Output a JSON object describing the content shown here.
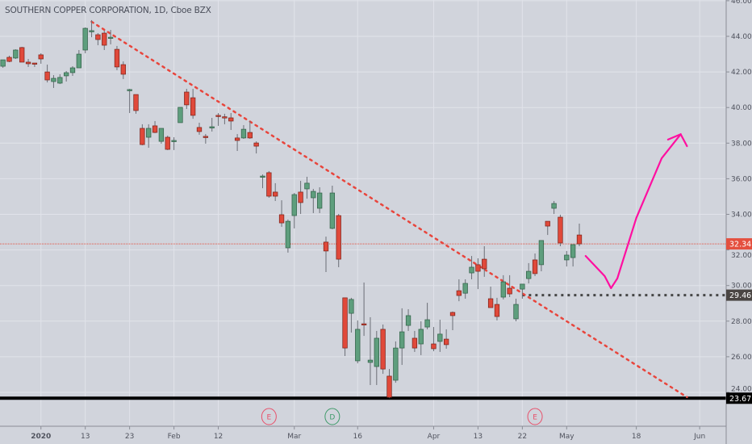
{
  "header": {
    "title": "SOUTHERN COPPER CORPORATION, 1D, Cboe BZX"
  },
  "colors": {
    "background": "#d1d4dc",
    "grid": "#e1e3ea",
    "up": "#5e9e7d",
    "down": "#e0493a",
    "trendline": "#e8453c",
    "drawing": "#ff0fa0",
    "last_price": "#e4503f",
    "level": "#454545",
    "support": "#000000"
  },
  "price_axis": {
    "labels": [
      "46.00",
      "44.00",
      "42.00",
      "40.00",
      "38.00",
      "36.00",
      "34.00",
      "32.00",
      "30.00",
      "28.00",
      "26.00",
      "24.00"
    ]
  },
  "time_axis": {
    "labels": [
      {
        "text": "2020",
        "date": "2020-01-02"
      },
      {
        "text": "13",
        "date": "2020-01-13"
      },
      {
        "text": "23",
        "date": "2020-01-23"
      },
      {
        "text": "Feb",
        "date": "2020-02-03"
      },
      {
        "text": "12",
        "date": "2020-02-12"
      },
      {
        "text": "Mar",
        "date": "2020-03-02"
      },
      {
        "text": "16",
        "date": "2020-03-16"
      },
      {
        "text": "Apr",
        "date": "2020-04-01"
      },
      {
        "text": "13",
        "date": "2020-04-13"
      },
      {
        "text": "22",
        "date": "2020-04-22"
      },
      {
        "text": "May",
        "date": "2020-05-01"
      },
      {
        "text": "18",
        "date": "2020-05-18"
      },
      {
        "text": "Jun",
        "date": "2020-06-01"
      }
    ]
  },
  "price_tags": [
    {
      "text": "32.34",
      "value": 32.34,
      "kind": "last_price"
    },
    {
      "text": "29.46",
      "value": 29.46,
      "kind": "level"
    },
    {
      "text": "23.67",
      "value": 23.67,
      "kind": "support"
    }
  ],
  "events": [
    {
      "text": "E",
      "date": "2020-02-25",
      "kind": "earnings"
    },
    {
      "text": "D",
      "date": "2020-03-10",
      "kind": "dividend"
    },
    {
      "text": "E",
      "date": "2020-04-24",
      "kind": "earnings"
    }
  ],
  "drawings": {
    "trendline": {
      "style": "dotted",
      "points": [
        [
          "2020-01-14",
          44.82
        ],
        [
          "2020-05-28",
          23.73
        ]
      ]
    },
    "level_line": {
      "style": "dotted",
      "value": 29.46,
      "from": "2020-04-22"
    },
    "support_line": {
      "style": "solid",
      "value": 23.67
    },
    "arrow_path": [
      [
        "2020-05-06",
        31.66
      ],
      [
        "2020-05-11",
        30.53
      ],
      [
        "2020-05-12",
        29.85
      ],
      [
        "2020-05-13",
        30.4
      ],
      [
        "2020-05-18",
        33.8
      ],
      [
        "2020-05-22",
        37.15
      ],
      [
        "2020-05-27",
        38.5
      ]
    ],
    "arrow_head": [
      [
        "2020-05-25",
        38.2
      ],
      [
        "2020-05-27",
        38.5
      ],
      [
        "2020-05-28",
        37.83
      ]
    ]
  },
  "chart_data": {
    "type": "candlestick",
    "symbol": "SOUTHERN COPPER CORPORATION",
    "interval": "1D",
    "exchange": "Cboe BZX",
    "ylim": [
      23.0,
      46.2
    ],
    "grid": true,
    "candles": [
      [
        "2019-12-20",
        42.87,
        43.0,
        42.23,
        42.28
      ],
      [
        "2019-12-23",
        42.32,
        42.68,
        42.23,
        42.68
      ],
      [
        "2019-12-24",
        42.82,
        42.91,
        42.55,
        42.59
      ],
      [
        "2019-12-26",
        42.78,
        43.27,
        42.73,
        43.23
      ],
      [
        "2019-12-27",
        43.37,
        43.41,
        42.55,
        42.55
      ],
      [
        "2019-12-30",
        42.55,
        42.73,
        42.28,
        42.46
      ],
      [
        "2019-12-31",
        42.5,
        42.5,
        42.28,
        42.46
      ],
      [
        "2020-01-02",
        42.96,
        43.05,
        42.46,
        42.73
      ],
      [
        "2020-01-03",
        42.0,
        42.41,
        41.41,
        41.55
      ],
      [
        "2020-01-06",
        41.46,
        41.82,
        41.1,
        41.64
      ],
      [
        "2020-01-07",
        41.37,
        41.87,
        41.32,
        41.69
      ],
      [
        "2020-01-08",
        41.78,
        42.05,
        41.46,
        41.96
      ],
      [
        "2020-01-09",
        41.96,
        42.32,
        41.78,
        42.23
      ],
      [
        "2020-01-10",
        42.23,
        43.23,
        42.23,
        43.0
      ],
      [
        "2020-01-13",
        43.23,
        44.5,
        43.05,
        44.45
      ],
      [
        "2020-01-14",
        44.3,
        44.91,
        43.95,
        44.32
      ],
      [
        "2020-01-15",
        44.09,
        44.18,
        43.5,
        43.82
      ],
      [
        "2020-01-16",
        44.18,
        44.32,
        43.23,
        43.5
      ],
      [
        "2020-01-17",
        43.93,
        44.36,
        43.55,
        43.95
      ],
      [
        "2020-01-21",
        43.27,
        43.46,
        42.1,
        42.28
      ],
      [
        "2020-01-22",
        42.41,
        42.59,
        41.6,
        41.87
      ],
      [
        "2020-01-23",
        40.99,
        41.05,
        39.69,
        41.01
      ],
      [
        "2020-01-24",
        40.73,
        40.73,
        39.65,
        39.83
      ],
      [
        "2020-01-27",
        38.83,
        39.06,
        37.88,
        37.92
      ],
      [
        "2020-01-28",
        38.33,
        39.06,
        37.74,
        38.83
      ],
      [
        "2020-01-29",
        38.97,
        39.24,
        38.56,
        38.6
      ],
      [
        "2020-01-30",
        38.1,
        38.83,
        37.97,
        38.83
      ],
      [
        "2020-01-31",
        38.33,
        38.42,
        37.61,
        37.65
      ],
      [
        "2020-02-03",
        38.13,
        38.33,
        37.61,
        38.15
      ],
      [
        "2020-02-04",
        39.15,
        40.01,
        39.15,
        40.01
      ],
      [
        "2020-02-05",
        40.87,
        41.05,
        39.92,
        40.15
      ],
      [
        "2020-02-06",
        40.55,
        41.05,
        39.37,
        39.56
      ],
      [
        "2020-02-07",
        38.88,
        39.15,
        38.47,
        38.65
      ],
      [
        "2020-02-10",
        38.38,
        38.51,
        37.97,
        38.33
      ],
      [
        "2020-02-11",
        38.88,
        39.42,
        38.65,
        38.92
      ],
      [
        "2020-02-12",
        39.56,
        39.69,
        38.97,
        39.51
      ],
      [
        "2020-02-13",
        39.48,
        39.65,
        39.06,
        39.44
      ],
      [
        "2020-02-14",
        39.42,
        39.69,
        38.74,
        39.24
      ],
      [
        "2020-02-18",
        38.29,
        38.51,
        37.56,
        38.15
      ],
      [
        "2020-02-19",
        38.29,
        39.01,
        38.24,
        38.78
      ],
      [
        "2020-02-20",
        38.6,
        39.24,
        38.24,
        38.29
      ],
      [
        "2020-02-21",
        38.01,
        38.1,
        37.42,
        37.83
      ],
      [
        "2020-02-24",
        36.13,
        36.24,
        35.47,
        36.15
      ],
      [
        "2020-02-25",
        36.34,
        36.43,
        34.93,
        35.02
      ],
      [
        "2020-02-26",
        35.25,
        35.75,
        34.75,
        35.02
      ],
      [
        "2020-02-27",
        33.98,
        34.79,
        33.3,
        33.52
      ],
      [
        "2020-02-28",
        32.12,
        33.71,
        31.85,
        33.61
      ],
      [
        "2020-03-02",
        33.93,
        35.2,
        33.21,
        35.11
      ],
      [
        "2020-03-03",
        35.25,
        35.88,
        34.02,
        34.66
      ],
      [
        "2020-03-04",
        35.43,
        36.11,
        34.88,
        35.75
      ],
      [
        "2020-03-05",
        34.93,
        35.43,
        34.07,
        35.29
      ],
      [
        "2020-03-06",
        34.34,
        35.52,
        34.07,
        35.2
      ],
      [
        "2020-03-09",
        32.44,
        32.75,
        30.76,
        31.94
      ],
      [
        "2020-03-10",
        33.21,
        35.61,
        33.16,
        35.2
      ],
      [
        "2020-03-11",
        33.93,
        34.02,
        31.03,
        31.48
      ],
      [
        "2020-03-12",
        29.31,
        29.31,
        26.04,
        26.49
      ],
      [
        "2020-03-13",
        28.44,
        29.31,
        27.36,
        29.22
      ],
      [
        "2020-03-16",
        25.77,
        28.04,
        25.63,
        27.54
      ],
      [
        "2020-03-17",
        27.85,
        30.17,
        27.17,
        27.81
      ],
      [
        "2020-03-18",
        25.68,
        28.22,
        24.41,
        25.81
      ],
      [
        "2020-03-19",
        25.45,
        27.45,
        24.41,
        27.04
      ],
      [
        "2020-03-20",
        27.54,
        27.81,
        25.04,
        25.31
      ],
      [
        "2020-03-23",
        24.91,
        25.31,
        23.67,
        23.72
      ],
      [
        "2020-03-24",
        24.68,
        26.86,
        24.54,
        26.49
      ],
      [
        "2020-03-25",
        26.49,
        28.72,
        25.54,
        27.4
      ],
      [
        "2020-03-26",
        27.76,
        28.67,
        27.45,
        28.31
      ],
      [
        "2020-03-27",
        27.04,
        27.45,
        26.27,
        26.49
      ],
      [
        "2020-03-30",
        26.72,
        27.99,
        26.09,
        27.54
      ],
      [
        "2020-03-31",
        27.67,
        29.03,
        27.54,
        28.08
      ],
      [
        "2020-04-01",
        26.72,
        27.67,
        26.31,
        26.45
      ],
      [
        "2020-04-02",
        26.86,
        28.08,
        26.27,
        27.27
      ],
      [
        "2020-04-03",
        26.99,
        27.54,
        26.45,
        26.68
      ],
      [
        "2020-04-06",
        28.49,
        28.54,
        27.49,
        28.31
      ],
      [
        "2020-04-07",
        29.71,
        30.35,
        29.12,
        29.44
      ],
      [
        "2020-04-08",
        29.57,
        30.35,
        29.26,
        30.12
      ],
      [
        "2020-04-09",
        30.71,
        31.66,
        30.35,
        31.03
      ],
      [
        "2020-04-13",
        31.17,
        31.53,
        29.8,
        30.8
      ],
      [
        "2020-04-14",
        31.48,
        32.21,
        30.49,
        30.94
      ],
      [
        "2020-04-15",
        29.26,
        29.94,
        28.76,
        28.76
      ],
      [
        "2020-04-16",
        28.94,
        29.31,
        28.04,
        28.26
      ],
      [
        "2020-04-17",
        29.35,
        30.58,
        29.22,
        30.21
      ],
      [
        "2020-04-20",
        29.85,
        30.58,
        29.35,
        29.53
      ],
      [
        "2020-04-21",
        28.13,
        29.26,
        27.99,
        28.94
      ],
      [
        "2020-04-22",
        29.8,
        30.08,
        29.26,
        30.08
      ],
      [
        "2020-04-23",
        30.39,
        31.26,
        30.12,
        30.8
      ],
      [
        "2020-04-24",
        31.44,
        31.8,
        30.53,
        30.67
      ],
      [
        "2020-04-27",
        31.17,
        32.53,
        30.8,
        32.53
      ],
      [
        "2020-04-28",
        33.61,
        33.61,
        32.84,
        33.34
      ],
      [
        "2020-04-29",
        34.34,
        34.75,
        34.02,
        34.61
      ],
      [
        "2020-04-30",
        33.84,
        33.98,
        32.21,
        32.39
      ],
      [
        "2020-05-01",
        31.44,
        31.94,
        31.07,
        31.71
      ],
      [
        "2020-05-04",
        31.57,
        32.3,
        31.07,
        32.3
      ],
      [
        "2020-05-05",
        32.84,
        33.48,
        32.21,
        32.34
      ]
    ]
  }
}
